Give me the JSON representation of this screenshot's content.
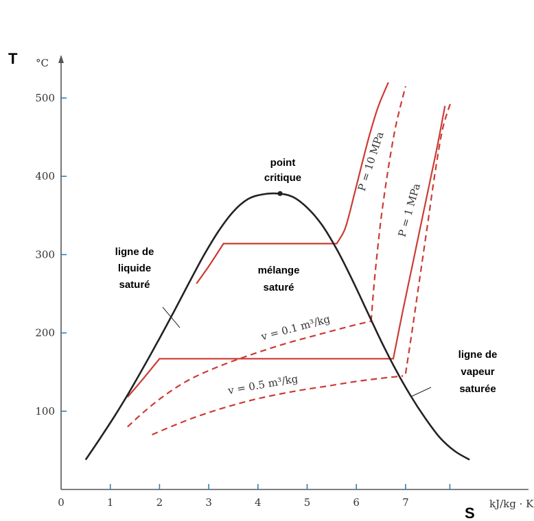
{
  "chart_data": {
    "type": "line",
    "title": "",
    "y_axis_letter": "T",
    "y_unit": "°C",
    "x_axis_letter": "S",
    "x_unit": "kJ/kg · K",
    "x_ticks": [
      "0",
      "1",
      "2",
      "3",
      "4",
      "5",
      "6",
      "7"
    ],
    "y_ticks": [
      "100",
      "200",
      "300",
      "400",
      "500"
    ],
    "xlim": [
      0,
      8.3
    ],
    "ylim": [
      0,
      550
    ],
    "colors": {
      "dome": "#222222",
      "isobar": "#cc3a33"
    },
    "saturation_dome": {
      "x": [
        0.5,
        0.8,
        1.1,
        1.4,
        1.7,
        2.0,
        2.3,
        2.6,
        2.9,
        3.2,
        3.5,
        3.8,
        4.1,
        4.4,
        4.7,
        5.0,
        5.3,
        5.6,
        5.9,
        6.2,
        6.5,
        6.8,
        7.1,
        7.4,
        7.7,
        8.0,
        8.3
      ],
      "y": [
        38,
        66,
        95,
        126,
        159,
        193,
        228,
        264,
        299,
        330,
        355,
        371,
        377,
        378,
        374,
        360,
        338,
        307,
        270,
        230,
        190,
        153,
        120,
        91,
        66,
        49,
        38
      ]
    },
    "critical_point": {
      "x": 4.45,
      "y": 378
    },
    "series": [
      {
        "label": "P = 10 MPa",
        "style": "solid",
        "x": [
          2.75,
          3.0,
          3.3,
          5.6,
          5.75,
          5.85,
          5.95,
          6.05,
          6.15,
          6.3,
          6.45,
          6.65
        ],
        "y": [
          263,
          285,
          314,
          314,
          330,
          350,
          375,
          400,
          425,
          460,
          490,
          520
        ]
      },
      {
        "label": "P = 1 MPa",
        "style": "solid",
        "x": [
          1.35,
          1.65,
          2.0,
          6.75,
          6.95,
          7.15,
          7.35,
          7.5,
          7.65,
          7.8
        ],
        "y": [
          118,
          140,
          167,
          167,
          230,
          290,
          350,
          395,
          440,
          490
        ]
      },
      {
        "label": "",
        "style": "dashed",
        "x": [
          6.3,
          6.35,
          6.42,
          6.5,
          6.6,
          6.7,
          6.82,
          7.0
        ],
        "y": [
          215,
          255,
          300,
          345,
          390,
          430,
          470,
          515
        ]
      },
      {
        "label": "",
        "style": "dashed",
        "x": [
          7.0,
          7.15,
          7.3,
          7.45,
          7.6,
          7.75,
          7.92
        ],
        "y": [
          148,
          210,
          275,
          340,
          405,
          460,
          495
        ]
      },
      {
        "label": "v = 0.1 m³/kg",
        "style": "dashed",
        "x": [
          1.35,
          1.7,
          2.1,
          2.6,
          3.2,
          3.9,
          4.6,
          5.3,
          5.9,
          6.3
        ],
        "y": [
          80,
          100,
          120,
          140,
          157,
          173,
          187,
          199,
          209,
          215
        ]
      },
      {
        "label": "v = 0.5 m³/kg",
        "style": "dashed",
        "x": [
          1.85,
          2.3,
          2.8,
          3.4,
          4.0,
          4.7,
          5.4,
          6.0,
          6.5,
          6.95
        ],
        "y": [
          70,
          82,
          94,
          106,
          116,
          125,
          132,
          138,
          142,
          145
        ]
      }
    ],
    "annotations": {
      "critical_point_lines": [
        "point",
        "critique"
      ],
      "saturated_liquid_lines": [
        "ligne de",
        "liquide",
        "saturé"
      ],
      "saturated_mixture_lines": [
        "mélange",
        "saturé"
      ],
      "saturated_vapor_lines": [
        "ligne de",
        "vapeur",
        "saturée"
      ]
    }
  }
}
